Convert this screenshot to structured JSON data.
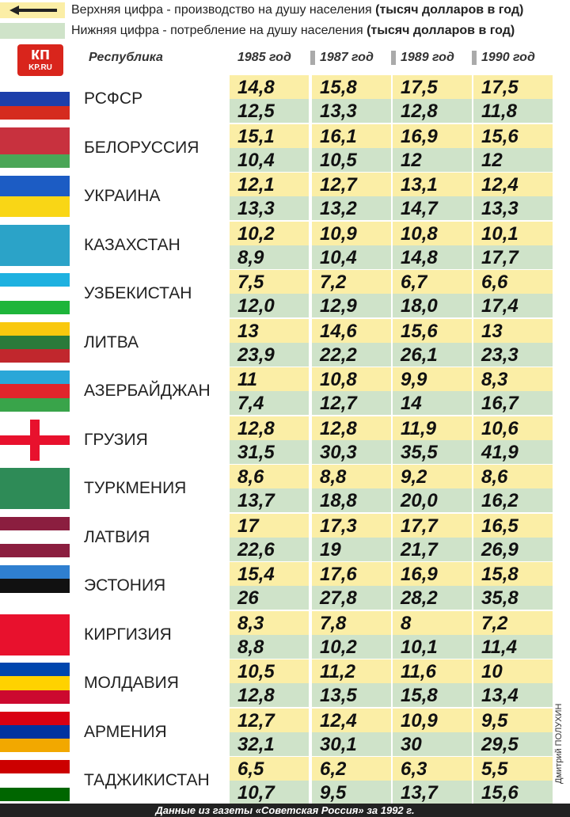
{
  "legend": {
    "top": {
      "text": "Верхняя цифра - производство на душу населения",
      "unit": "(тысяч долларов в год)"
    },
    "bottom": {
      "text": "Нижняя цифра - потребление на душу населения",
      "unit": "(тысяч долларов в год)"
    }
  },
  "logo": {
    "main": "кп",
    "site": "KP.RU"
  },
  "table": {
    "header": [
      "Республика",
      "1985 год",
      "1987 год",
      "1989 год",
      "1990 год"
    ],
    "rows": [
      {
        "name": "РСФСР",
        "production": [
          "14,8",
          "15,8",
          "17,5",
          "17,5"
        ],
        "consumption": [
          "12,5",
          "13,3",
          "12,8",
          "11,8"
        ]
      },
      {
        "name": "БЕЛОРУССИЯ",
        "production": [
          "15,1",
          "16,1",
          "16,9",
          "15,6"
        ],
        "consumption": [
          "10,4",
          "10,5",
          "12",
          "12"
        ]
      },
      {
        "name": "УКРАИНА",
        "production": [
          "12,1",
          "12,7",
          "13,1",
          "12,4"
        ],
        "consumption": [
          "13,3",
          "13,2",
          "14,7",
          "13,3"
        ]
      },
      {
        "name": "КАЗАХСТАН",
        "production": [
          "10,2",
          "10,9",
          "10,8",
          "10,1"
        ],
        "consumption": [
          "8,9",
          "10,4",
          "14,8",
          "17,7"
        ]
      },
      {
        "name": "УЗБЕКИСТАН",
        "production": [
          "7,5",
          "7,2",
          "6,7",
          "6,6"
        ],
        "consumption": [
          "12,0",
          "12,9",
          "18,0",
          "17,4"
        ]
      },
      {
        "name": "ЛИТВА",
        "production": [
          "13",
          "14,6",
          "15,6",
          "13"
        ],
        "consumption": [
          "23,9",
          "22,2",
          "26,1",
          "23,3"
        ]
      },
      {
        "name": "АЗЕРБАЙДЖАН",
        "production": [
          "11",
          "10,8",
          "9,9",
          "8,3"
        ],
        "consumption": [
          "7,4",
          "12,7",
          "14",
          "16,7"
        ]
      },
      {
        "name": "ГРУЗИЯ",
        "production": [
          "12,8",
          "12,8",
          "11,9",
          "10,6"
        ],
        "consumption": [
          "31,5",
          "30,3",
          "35,5",
          "41,9"
        ]
      },
      {
        "name": "ТУРКМЕНИЯ",
        "production": [
          "8,6",
          "8,8",
          "9,2",
          "8,6"
        ],
        "consumption": [
          "13,7",
          "18,8",
          "20,0",
          "16,2"
        ]
      },
      {
        "name": "ЛАТВИЯ",
        "production": [
          "17",
          "17,3",
          "17,7",
          "16,5"
        ],
        "consumption": [
          "22,6",
          "19",
          "21,7",
          "26,9"
        ]
      },
      {
        "name": "ЭСТОНИЯ",
        "production": [
          "15,4",
          "17,6",
          "16,9",
          "15,8"
        ],
        "consumption": [
          "26",
          "27,8",
          "28,2",
          "35,8"
        ]
      },
      {
        "name": "КИРГИЗИЯ",
        "production": [
          "8,3",
          "7,8",
          "8",
          "7,2"
        ],
        "consumption": [
          "8,8",
          "10,2",
          "10,1",
          "11,4"
        ]
      },
      {
        "name": "МОЛДАВИЯ",
        "production": [
          "10,5",
          "11,2",
          "11,6",
          "10"
        ],
        "consumption": [
          "12,8",
          "13,5",
          "15,8",
          "13,4"
        ]
      },
      {
        "name": "АРМЕНИЯ",
        "production": [
          "12,7",
          "12,4",
          "10,9",
          "9,5"
        ],
        "consumption": [
          "32,1",
          "30,1",
          "30",
          "29,5"
        ]
      },
      {
        "name": "ТАДЖИКИСТАН",
        "production": [
          "6,5",
          "6,2",
          "6,3",
          "5,5"
        ],
        "consumption": [
          "10,7",
          "9,5",
          "13,7",
          "15,6"
        ]
      }
    ]
  },
  "credit": "Дмитрий ПОЛУХИН",
  "footer": "Данные из газеты «Советская Россия» за 1992 г."
}
